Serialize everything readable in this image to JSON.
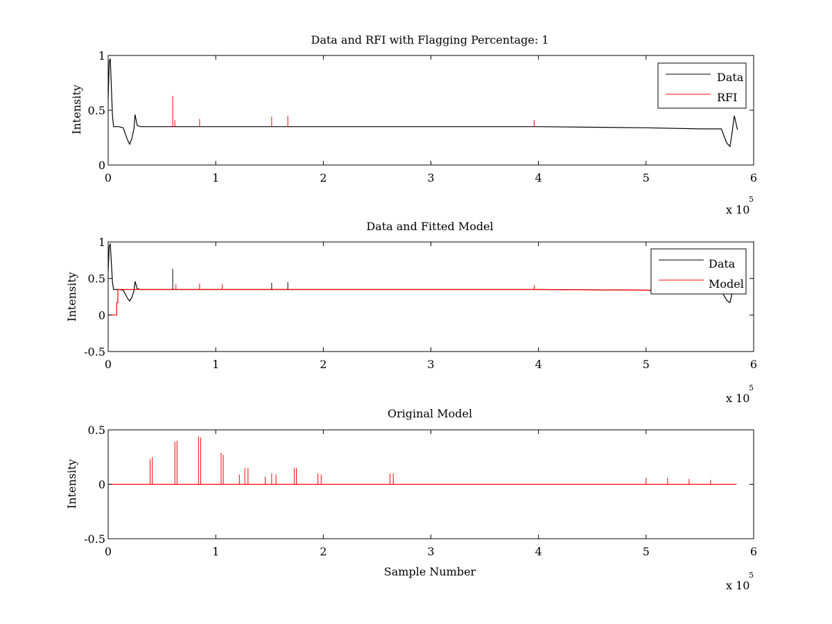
{
  "colors": {
    "data": "#000000",
    "rfi": "#ff0000",
    "model": "#ff0000",
    "axes": "#000000",
    "background": "#ffffff"
  },
  "chart_data": [
    {
      "type": "line",
      "title": "Data and RFI with Flagging Percentage: 1",
      "xlabel": "",
      "ylabel": "Intensity",
      "xlim": [
        0,
        600000
      ],
      "ylim": [
        0,
        1
      ],
      "xticks": [
        0,
        1,
        2,
        3,
        4,
        5,
        6
      ],
      "yticks": [
        "0",
        "0.5",
        "1"
      ],
      "x_exponent": {
        "base": "x 10",
        "power": "5"
      },
      "legend": {
        "position": "top-right",
        "entries": [
          "Data",
          "RFI"
        ]
      },
      "series": [
        {
          "name": "Data",
          "color": "#000000",
          "x": [
            0,
            1000,
            2000,
            3000,
            4000,
            5000,
            7000,
            10000,
            14000,
            18000,
            20000,
            22000,
            24000,
            25000,
            27000,
            30000,
            40000,
            60000,
            100000,
            150000,
            200000,
            250000,
            300000,
            350000,
            400000,
            450000,
            500000,
            550000,
            570000,
            575000,
            578000,
            580000,
            582000,
            585000
          ],
          "y": [
            0.6,
            0.95,
            0.97,
            0.7,
            0.45,
            0.35,
            0.35,
            0.35,
            0.34,
            0.23,
            0.19,
            0.24,
            0.33,
            0.46,
            0.36,
            0.35,
            0.35,
            0.35,
            0.35,
            0.35,
            0.35,
            0.35,
            0.35,
            0.35,
            0.35,
            0.345,
            0.34,
            0.33,
            0.33,
            0.2,
            0.17,
            0.3,
            0.45,
            0.32
          ]
        },
        {
          "name": "RFI",
          "color": "#ff0000",
          "spikes": [
            {
              "x": 60000,
              "y": 0.63
            },
            {
              "x": 62000,
              "y": 0.41
            },
            {
              "x": 85000,
              "y": 0.42
            },
            {
              "x": 152000,
              "y": 0.44
            },
            {
              "x": 167000,
              "y": 0.45
            },
            {
              "x": 396000,
              "y": 0.41
            }
          ]
        }
      ]
    },
    {
      "type": "line",
      "title": "Data and Fitted Model",
      "xlabel": "",
      "ylabel": "Intensity",
      "xlim": [
        0,
        600000
      ],
      "ylim": [
        -0.5,
        1
      ],
      "xticks": [
        0,
        1,
        2,
        3,
        4,
        5,
        6
      ],
      "yticks": [
        "-0.5",
        "0",
        "0.5",
        "1"
      ],
      "x_exponent": {
        "base": "x 10",
        "power": "5"
      },
      "legend": {
        "position": "top-right",
        "entries": [
          "Data",
          "Model"
        ]
      },
      "series": [
        {
          "name": "Data",
          "color": "#000000",
          "x": [
            0,
            1000,
            2000,
            3000,
            4000,
            5000,
            7000,
            10000,
            14000,
            18000,
            20000,
            22000,
            24000,
            25000,
            27000,
            30000,
            40000,
            60000,
            100000,
            150000,
            200000,
            250000,
            300000,
            350000,
            400000,
            450000,
            500000,
            550000,
            570000,
            575000,
            578000,
            580000,
            582000,
            585000
          ],
          "y": [
            0.6,
            0.95,
            0.97,
            0.7,
            0.45,
            0.35,
            0.35,
            0.35,
            0.34,
            0.23,
            0.19,
            0.24,
            0.33,
            0.46,
            0.36,
            0.35,
            0.35,
            0.35,
            0.35,
            0.35,
            0.35,
            0.35,
            0.35,
            0.35,
            0.35,
            0.345,
            0.34,
            0.33,
            0.33,
            0.2,
            0.17,
            0.3,
            0.45,
            0.32
          ]
        },
        {
          "name": "Model",
          "color": "#ff0000",
          "x": [
            0,
            8000,
            8000,
            9000,
            9000,
            50000,
            100000,
            200000,
            300000,
            400000,
            500000,
            580000
          ],
          "y": [
            0,
            0,
            0.17,
            0.17,
            0.35,
            0.35,
            0.35,
            0.35,
            0.35,
            0.35,
            0.34,
            0.33
          ]
        }
      ],
      "spikes": [
        {
          "x": 60000,
          "y": 0.63,
          "color": "#000000"
        },
        {
          "x": 63000,
          "y": 0.42,
          "color": "#ff0000"
        },
        {
          "x": 85000,
          "y": 0.43,
          "color": "#ff0000"
        },
        {
          "x": 106000,
          "y": 0.42,
          "color": "#ff0000"
        },
        {
          "x": 152000,
          "y": 0.44,
          "color": "#000000"
        },
        {
          "x": 167000,
          "y": 0.45,
          "color": "#000000"
        },
        {
          "x": 396000,
          "y": 0.41,
          "color": "#ff0000"
        }
      ]
    },
    {
      "type": "line",
      "title": "Original Model",
      "xlabel": "Sample Number",
      "ylabel": "Intensity",
      "xlim": [
        0,
        600000
      ],
      "ylim": [
        -0.5,
        0.5
      ],
      "xticks": [
        0,
        1,
        2,
        3,
        4,
        5,
        6
      ],
      "yticks": [
        "-0.5",
        "0",
        "0.5"
      ],
      "x_exponent": {
        "base": "x 10",
        "power": "5"
      },
      "series": [
        {
          "name": "Original Model",
          "color": "#ff0000",
          "baseline": {
            "x": [
              1000,
              584000
            ],
            "y": 0
          },
          "spikes": [
            {
              "x": 39000,
              "y": 0.23
            },
            {
              "x": 41000,
              "y": 0.25
            },
            {
              "x": 62000,
              "y": 0.39
            },
            {
              "x": 64000,
              "y": 0.4
            },
            {
              "x": 84000,
              "y": 0.44
            },
            {
              "x": 86000,
              "y": 0.43
            },
            {
              "x": 105000,
              "y": 0.29
            },
            {
              "x": 107000,
              "y": 0.27
            },
            {
              "x": 127000,
              "y": 0.15
            },
            {
              "x": 130000,
              "y": 0.15
            },
            {
              "x": 173000,
              "y": 0.15
            },
            {
              "x": 175000,
              "y": 0.15
            },
            {
              "x": 122000,
              "y": 0.09
            },
            {
              "x": 146000,
              "y": 0.07
            },
            {
              "x": 152000,
              "y": 0.1
            },
            {
              "x": 156000,
              "y": 0.09
            },
            {
              "x": 195000,
              "y": 0.1
            },
            {
              "x": 198000,
              "y": 0.09
            },
            {
              "x": 262000,
              "y": 0.1
            },
            {
              "x": 265000,
              "y": 0.1
            },
            {
              "x": 500000,
              "y": 0.06
            },
            {
              "x": 520000,
              "y": 0.06
            },
            {
              "x": 540000,
              "y": 0.05
            },
            {
              "x": 560000,
              "y": 0.04
            }
          ]
        }
      ]
    }
  ]
}
